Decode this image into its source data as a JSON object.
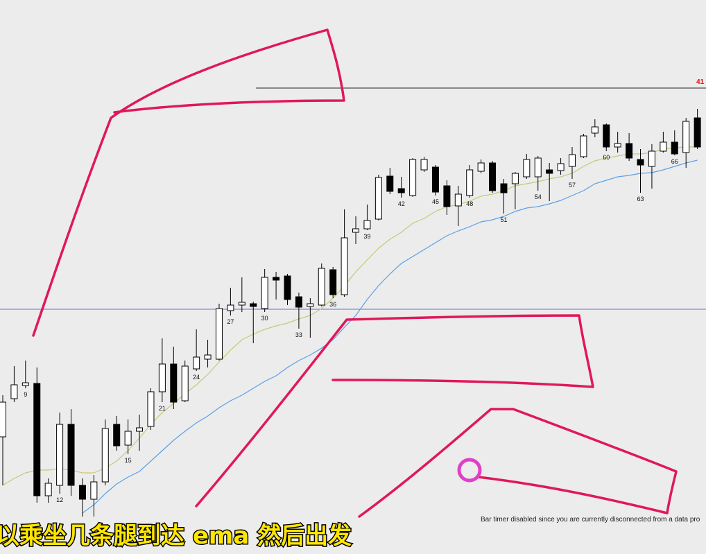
{
  "chart_data": {
    "type": "candlestick",
    "categories": [
      null,
      null,
      "9",
      null,
      null,
      "12",
      null,
      null,
      null,
      null,
      null,
      "15",
      null,
      null,
      "21",
      null,
      null,
      "24",
      null,
      null,
      "27",
      null,
      null,
      "30",
      null,
      null,
      "33",
      null,
      null,
      "36",
      null,
      null,
      "39",
      null,
      null,
      "42",
      null,
      null,
      "45",
      null,
      null,
      "48",
      null,
      null,
      "51",
      null,
      null,
      "54",
      null,
      null,
      "57",
      null,
      null,
      "60",
      null,
      null,
      "63",
      null,
      null,
      "66",
      null,
      null
    ],
    "open": [
      130,
      185,
      204,
      207,
      45,
      60,
      148,
      60,
      40,
      65,
      148,
      118,
      138,
      145,
      195,
      235,
      182,
      228,
      242,
      242,
      312,
      320,
      322,
      315,
      360,
      362,
      332,
      318,
      320,
      371,
      335,
      425,
      430,
      444,
      506,
      488,
      478,
      515,
      519,
      492,
      463,
      478,
      513,
      525,
      495,
      495,
      505,
      505,
      515,
      514,
      520,
      534,
      568,
      580,
      548,
      553,
      530,
      520,
      542,
      555,
      540,
      590
    ],
    "high": [
      190,
      232,
      240,
      230,
      70,
      165,
      170,
      70,
      75,
      155,
      160,
      155,
      162,
      200,
      272,
      260,
      240,
      285,
      270,
      322,
      345,
      360,
      325,
      372,
      368,
      365,
      338,
      330,
      380,
      375,
      458,
      448,
      465,
      508,
      518,
      505,
      532,
      534,
      522,
      500,
      492,
      522,
      530,
      528,
      502,
      512,
      538,
      535,
      525,
      532,
      548,
      567,
      588,
      582,
      570,
      568,
      545,
      552,
      570,
      572,
      590,
      603
    ],
    "low": [
      60,
      180,
      200,
      35,
      35,
      48,
      45,
      15,
      15,
      60,
      110,
      105,
      110,
      140,
      180,
      170,
      180,
      225,
      230,
      240,
      305,
      310,
      265,
      310,
      328,
      320,
      286,
      273,
      318,
      330,
      332,
      408,
      428,
      442,
      480,
      475,
      476,
      512,
      478,
      450,
      434,
      475,
      510,
      482,
      452,
      458,
      502,
      485,
      470,
      508,
      502,
      532,
      562,
      542,
      540,
      528,
      482,
      488,
      540,
      536,
      518,
      545
    ],
    "close": [
      180,
      205,
      208,
      45,
      63,
      148,
      60,
      40,
      65,
      142,
      117,
      138,
      143,
      195,
      235,
      180,
      232,
      245,
      248,
      315,
      320,
      324,
      318,
      360,
      356,
      328,
      317,
      322,
      373,
      335,
      417,
      430,
      442,
      504,
      484,
      482,
      530,
      530,
      483,
      462,
      480,
      515,
      525,
      485,
      482,
      510,
      530,
      532,
      510,
      524,
      537,
      564,
      577,
      548,
      553,
      532,
      522,
      542,
      555,
      538,
      585,
      548
    ],
    "up_color": "#ffffff",
    "down_color": "#000000",
    "ema_lines": [
      {
        "color": "#c8c87a",
        "values": [
          60,
          70,
          78,
          82,
          82,
          84,
          82,
          78,
          78,
          85,
          95,
          110,
          128,
          148,
          165,
          178,
          192,
          205,
          220,
          238,
          255,
          270,
          278,
          285,
          290,
          294,
          300,
          305,
          315,
          330,
          348,
          368,
          385,
          402,
          415,
          425,
          438,
          445,
          455,
          462,
          465,
          470,
          477,
          480,
          485,
          492,
          495,
          498,
          502,
          505,
          510,
          520,
          528,
          532,
          535,
          538,
          538,
          540,
          545,
          547,
          548,
          548
        ]
      },
      {
        "color": "#5aa0e6",
        "values": [
          null,
          null,
          null,
          null,
          null,
          null,
          null,
          20,
          32,
          48,
          62,
          72,
          80,
          95,
          110,
          125,
          138,
          150,
          160,
          172,
          182,
          190,
          200,
          210,
          218,
          230,
          240,
          248,
          258,
          270,
          288,
          305,
          328,
          348,
          365,
          380,
          390,
          400,
          410,
          420,
          427,
          433,
          440,
          443,
          448,
          455,
          460,
          462,
          466,
          471,
          478,
          485,
          495,
          500,
          505,
          507,
          510,
          511,
          515,
          520,
          525,
          529
        ]
      }
    ],
    "levels": [
      {
        "value": 633,
        "color": "#222222"
      },
      {
        "value": 314,
        "color": "#6070d8"
      }
    ],
    "level_label": "41",
    "ylim": [
      0,
      760
    ]
  },
  "status_text": "Bar timer disabled since you are currently disconnected from a data pro",
  "subtitle": "以乘坐几条腿到达 ema 然后出发"
}
